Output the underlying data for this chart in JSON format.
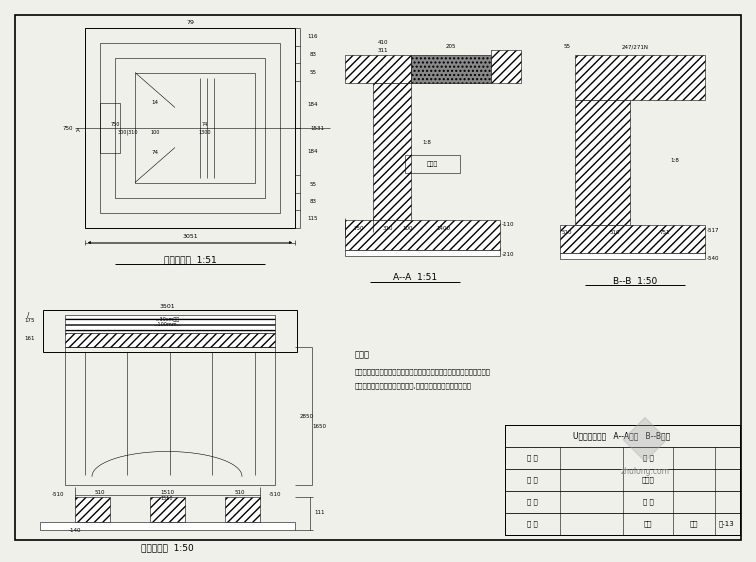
{
  "bg_color": "#f0f0eb",
  "line_color": "#000000",
  "title1": "桥台平面图  1:51",
  "title2": "A--A  1:51",
  "title3": "B--B  1:50",
  "title4": "桥台立面图  1:50",
  "note_title": "说明：",
  "note_line1": "图中栏杆示意意，具体形式由甲方自定，建议采用金属栏杆，放坡折算断",
  "note_line2": "面，在预制空心板并排用的缝板,具体由栏杆装点做智化设计。",
  "table_title": "U型桥台结构图   A--A剖面   B--B剖面",
  "watermark": "zhulong.com"
}
